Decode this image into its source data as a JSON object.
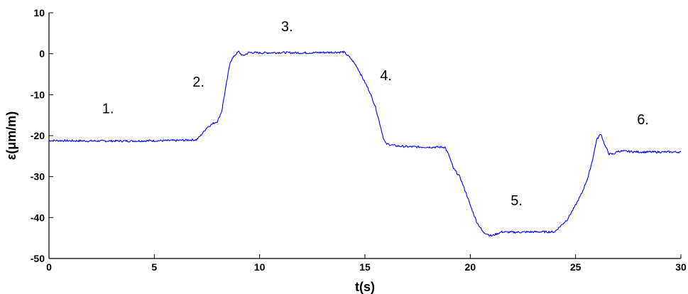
{
  "chart_data": {
    "type": "line",
    "title": "",
    "xlabel": "t(s)",
    "ylabel": "ε(μm/m)",
    "xlim": [
      0,
      30
    ],
    "ylim": [
      -50,
      10
    ],
    "xticks": [
      "0",
      "5",
      "10",
      "15",
      "20",
      "25",
      "30"
    ],
    "yticks": [
      "10",
      "0",
      "-10",
      "-20",
      "-30",
      "-40",
      "-50"
    ],
    "grid": false,
    "line_color": "#0000ff",
    "series": [
      {
        "x": [
          0,
          2,
          4,
          6,
          7,
          7.2,
          7.5,
          7.8,
          8.0,
          8.2,
          8.4,
          8.6,
          8.8,
          9.0,
          9.2,
          9.5,
          10,
          11,
          12,
          13,
          14,
          14.3,
          14.6,
          14.9,
          15.2,
          15.5,
          15.7,
          15.9,
          16.0,
          16.5,
          17,
          18,
          18.8,
          19.0,
          19.2,
          19.5,
          19.8,
          20.0,
          20.3,
          20.6,
          21.0,
          21.5,
          22,
          23,
          24,
          24.3,
          24.6,
          25.0,
          25.3,
          25.6,
          25.8,
          26.0,
          26.2,
          26.4,
          26.6,
          26.8,
          27.0,
          27.3,
          28,
          29,
          30
        ],
        "y": [
          -21.2,
          -21.3,
          -21.3,
          -21.2,
          -21.0,
          -20.0,
          -18.0,
          -17.0,
          -16.5,
          -14.0,
          -8.0,
          -2.0,
          -0.5,
          0.5,
          -0.5,
          0.3,
          0.2,
          0.3,
          0.2,
          0.3,
          0.4,
          -1.0,
          -3.0,
          -6.0,
          -9.0,
          -13.0,
          -17.0,
          -21.0,
          -22.0,
          -22.5,
          -22.7,
          -22.8,
          -22.8,
          -25.0,
          -28.0,
          -30.0,
          -34.0,
          -37.0,
          -41.0,
          -43.5,
          -44.5,
          -43.5,
          -43.6,
          -43.5,
          -43.5,
          -42.0,
          -40.5,
          -37.0,
          -34.0,
          -30.0,
          -26.0,
          -21.0,
          -19.5,
          -22.5,
          -24.5,
          -24.5,
          -23.8,
          -23.8,
          -24.0,
          -24.0,
          -24.0
        ]
      }
    ],
    "annotations": [
      {
        "text": "1.",
        "x": 2.8,
        "y": -14.5
      },
      {
        "text": "2.",
        "x": 7.1,
        "y": -8.0
      },
      {
        "text": "3.",
        "x": 11.3,
        "y": 5.5
      },
      {
        "text": "4.",
        "x": 16.0,
        "y": -6.5
      },
      {
        "text": "5.",
        "x": 22.2,
        "y": -37.0
      },
      {
        "text": "6.",
        "x": 28.2,
        "y": -17.2
      }
    ]
  }
}
